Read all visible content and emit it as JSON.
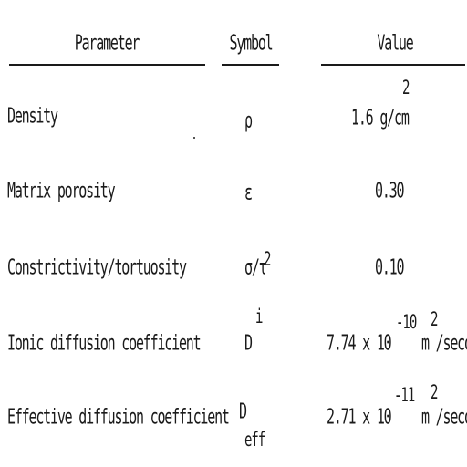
{
  "table": {
    "headers": {
      "parameter": "Parameter",
      "symbol": "Symbol",
      "value": "Value"
    },
    "rows": [
      {
        "parameter": "Density",
        "symbol": "ρ",
        "value": "1.6 g/cm",
        "value_sup": "2"
      },
      {
        "parameter": "Matrix porosity",
        "symbol": "ε",
        "value": "0.30"
      },
      {
        "parameter": "Constrictivity/tortuosity",
        "symbol": "σ/τ",
        "symbol_sup": "2",
        "value": "0.10"
      },
      {
        "parameter": "Ionic diffusion coefficient",
        "symbol": "D",
        "symbol_sup": "i",
        "value_a": "7.74 x 10",
        "value_exp": "-10",
        "value_b": "m /second",
        "value_b_sup": "2"
      },
      {
        "parameter": "Effective diffusion coefficient",
        "symbol": "D",
        "symbol_sub": "eff",
        "value_a": "2.71 x 10",
        "value_exp": "-11",
        "value_b": "m /second",
        "value_b_sup": "2"
      }
    ]
  }
}
